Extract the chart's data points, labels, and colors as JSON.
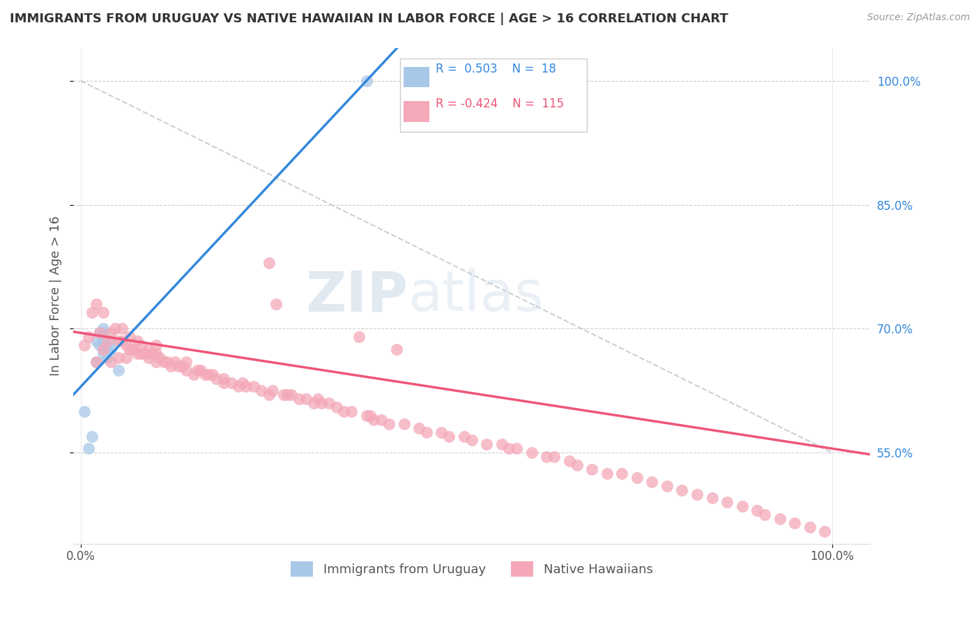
{
  "title": "IMMIGRANTS FROM URUGUAY VS NATIVE HAWAIIAN IN LABOR FORCE | AGE > 16 CORRELATION CHART",
  "source_text": "Source: ZipAtlas.com",
  "ylabel": "In Labor Force | Age > 16",
  "y_min": 0.44,
  "y_max": 1.04,
  "x_min": -0.01,
  "x_max": 1.05,
  "legend_label1": "Immigrants from Uruguay",
  "legend_label2": "Native Hawaiians",
  "blue_color": "#a8c8e8",
  "pink_color": "#f4a8b8",
  "blue_line_color": "#3388dd",
  "pink_line_color": "#ee5577",
  "diag_line_color": "#c0c8d0",
  "title_color": "#333333",
  "source_color": "#999999",
  "background_color": "#ffffff",
  "watermark_zip": "ZIP",
  "watermark_atlas": "atlas",
  "blue_dots_x": [
    0.005,
    0.01,
    0.015,
    0.02,
    0.02,
    0.025,
    0.025,
    0.03,
    0.03,
    0.03,
    0.03,
    0.03,
    0.035,
    0.035,
    0.04,
    0.04,
    0.05,
    0.38
  ],
  "blue_dots_y": [
    0.6,
    0.555,
    0.57,
    0.66,
    0.685,
    0.68,
    0.695,
    0.67,
    0.685,
    0.69,
    0.695,
    0.7,
    0.665,
    0.675,
    0.675,
    0.685,
    0.65,
    1.0
  ],
  "pink_dots_x": [
    0.005,
    0.01,
    0.015,
    0.02,
    0.02,
    0.025,
    0.03,
    0.03,
    0.035,
    0.04,
    0.04,
    0.045,
    0.05,
    0.05,
    0.055,
    0.055,
    0.06,
    0.06,
    0.065,
    0.065,
    0.07,
    0.075,
    0.075,
    0.08,
    0.08,
    0.085,
    0.09,
    0.09,
    0.095,
    0.1,
    0.1,
    0.1,
    0.105,
    0.11,
    0.115,
    0.12,
    0.125,
    0.13,
    0.135,
    0.14,
    0.14,
    0.15,
    0.155,
    0.16,
    0.165,
    0.17,
    0.175,
    0.18,
    0.19,
    0.19,
    0.2,
    0.21,
    0.215,
    0.22,
    0.23,
    0.24,
    0.25,
    0.255,
    0.27,
    0.275,
    0.28,
    0.29,
    0.3,
    0.31,
    0.315,
    0.32,
    0.33,
    0.34,
    0.35,
    0.36,
    0.38,
    0.385,
    0.39,
    0.4,
    0.41,
    0.43,
    0.45,
    0.46,
    0.48,
    0.49,
    0.51,
    0.52,
    0.54,
    0.56,
    0.57,
    0.58,
    0.6,
    0.62,
    0.63,
    0.65,
    0.66,
    0.68,
    0.7,
    0.72,
    0.74,
    0.76,
    0.78,
    0.8,
    0.82,
    0.84,
    0.86,
    0.88,
    0.9,
    0.91,
    0.93,
    0.95,
    0.97,
    0.99,
    0.25,
    0.26,
    0.37,
    0.42
  ],
  "pink_dots_y": [
    0.68,
    0.69,
    0.72,
    0.73,
    0.66,
    0.695,
    0.675,
    0.72,
    0.685,
    0.66,
    0.695,
    0.7,
    0.665,
    0.685,
    0.685,
    0.7,
    0.665,
    0.68,
    0.675,
    0.69,
    0.675,
    0.67,
    0.685,
    0.67,
    0.68,
    0.67,
    0.665,
    0.675,
    0.67,
    0.66,
    0.67,
    0.68,
    0.665,
    0.66,
    0.66,
    0.655,
    0.66,
    0.655,
    0.655,
    0.65,
    0.66,
    0.645,
    0.65,
    0.65,
    0.645,
    0.645,
    0.645,
    0.64,
    0.64,
    0.635,
    0.635,
    0.63,
    0.635,
    0.63,
    0.63,
    0.625,
    0.62,
    0.625,
    0.62,
    0.62,
    0.62,
    0.615,
    0.615,
    0.61,
    0.615,
    0.61,
    0.61,
    0.605,
    0.6,
    0.6,
    0.595,
    0.595,
    0.59,
    0.59,
    0.585,
    0.585,
    0.58,
    0.575,
    0.575,
    0.57,
    0.57,
    0.565,
    0.56,
    0.56,
    0.555,
    0.555,
    0.55,
    0.545,
    0.545,
    0.54,
    0.535,
    0.53,
    0.525,
    0.525,
    0.52,
    0.515,
    0.51,
    0.505,
    0.5,
    0.495,
    0.49,
    0.485,
    0.48,
    0.475,
    0.47,
    0.465,
    0.46,
    0.455,
    0.78,
    0.73,
    0.69,
    0.675
  ]
}
